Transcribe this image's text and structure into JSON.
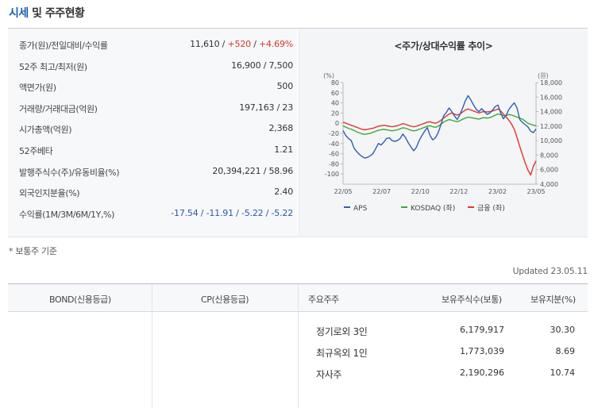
{
  "section": {
    "title_accent": "시세",
    "title_rest": " 및 주주현황"
  },
  "market_info": [
    {
      "label": "종가(원)/전일대비/수익률",
      "parts": [
        {
          "text": "11,610",
          "tone": "normal"
        },
        {
          "text": " / ",
          "tone": "sep"
        },
        {
          "text": "+520",
          "tone": "up"
        },
        {
          "text": " / ",
          "tone": "sep"
        },
        {
          "text": "+4.69%",
          "tone": "up"
        }
      ]
    },
    {
      "label": "52주 최고/최저(원)",
      "parts": [
        {
          "text": "16,900 / 7,500",
          "tone": "normal"
        }
      ]
    },
    {
      "label": "액면가(원)",
      "parts": [
        {
          "text": "500",
          "tone": "normal"
        }
      ]
    },
    {
      "label": "거래량/거래대금(억원)",
      "parts": [
        {
          "text": "197,163 / 23",
          "tone": "normal"
        }
      ]
    },
    {
      "label": "시가총액(억원)",
      "parts": [
        {
          "text": "2,368",
          "tone": "normal"
        }
      ]
    },
    {
      "label": "52주베타",
      "parts": [
        {
          "text": "1.21",
          "tone": "normal"
        }
      ]
    },
    {
      "label": "발행주식수(주)/유동비율(%)",
      "parts": [
        {
          "text": "20,394,221 / 58.96",
          "tone": "normal"
        }
      ]
    },
    {
      "label": "외국인지분율(%)",
      "parts": [
        {
          "text": "2.40",
          "tone": "normal"
        }
      ]
    },
    {
      "label": "수익률(1M/3M/6M/1Y,%)",
      "parts": [
        {
          "text": "-17.54 / -11.91 / -5.22 / -5.22",
          "tone": "down"
        }
      ]
    }
  ],
  "chart_data": {
    "type": "line",
    "title": "<주가/상대수익률 추이>",
    "left_axis": {
      "unit": "(%)",
      "ticks": [
        80,
        60,
        40,
        20,
        0,
        -20,
        -40,
        -60,
        -80,
        -100
      ],
      "range": [
        -120,
        80
      ]
    },
    "right_axis": {
      "unit": "(원)",
      "ticks": [
        "18,000",
        "16,000",
        "14,000",
        "12,000",
        "10,000",
        "8,000",
        "6,000",
        "4,000"
      ],
      "range": [
        4000,
        18000
      ]
    },
    "x_labels": [
      "22/05",
      "22/07",
      "22/10",
      "22/12",
      "23/02",
      "23/05"
    ],
    "series": [
      {
        "name": "APS",
        "color": "#2f5fb3",
        "axis": "right",
        "values": [
          11400,
          10700,
          10300,
          10000,
          9000,
          8500,
          8100,
          7800,
          7600,
          7700,
          7900,
          8200,
          8900,
          9600,
          9400,
          9800,
          10300,
          10400,
          10000,
          9900,
          10000,
          10300,
          10900,
          10400,
          9700,
          9100,
          8600,
          9100,
          10000,
          10700,
          11300,
          11800,
          10700,
          10100,
          10400,
          11100,
          12200,
          13400,
          13900,
          14500,
          14000,
          13400,
          12900,
          13600,
          14500,
          15500,
          16200,
          15600,
          14900,
          14300,
          14000,
          14400,
          14000,
          13600,
          13800,
          14200,
          14700,
          14900,
          13800,
          13000,
          13500,
          14300,
          14800,
          15200,
          14500,
          12900,
          12500,
          12200,
          11900,
          11300,
          11100,
          11610
        ]
      },
      {
        "name": "KOSDAQ (좌)",
        "color": "#3aaa35",
        "axis": "left",
        "values": [
          -5,
          -8,
          -10,
          -12,
          -14,
          -17,
          -19,
          -21,
          -22,
          -21,
          -20,
          -18,
          -16,
          -14,
          -13,
          -12,
          -13,
          -14,
          -15,
          -14,
          -13,
          -11,
          -9,
          -10,
          -12,
          -14,
          -15,
          -14,
          -12,
          -10,
          -8,
          -6,
          -5,
          -7,
          -8,
          -6,
          -2,
          2,
          5,
          7,
          6,
          4,
          3,
          5,
          8,
          10,
          12,
          11,
          10,
          9,
          8,
          10,
          11,
          10,
          11,
          13,
          16,
          18,
          17,
          15,
          15,
          17,
          16,
          14,
          12,
          10,
          8,
          4,
          0,
          -2,
          -4,
          -5
        ]
      },
      {
        "name": "금융 (좌)",
        "color": "#e3352d",
        "axis": "left",
        "values": [
          2,
          0,
          -2,
          -4,
          -6,
          -8,
          -10,
          -12,
          -13,
          -12,
          -11,
          -10,
          -8,
          -6,
          -5,
          -4,
          -5,
          -6,
          -7,
          -6,
          -5,
          -3,
          -1,
          -2,
          -4,
          -6,
          -7,
          -6,
          -4,
          -2,
          0,
          2,
          3,
          1,
          0,
          2,
          6,
          10,
          14,
          18,
          20,
          18,
          16,
          18,
          22,
          26,
          28,
          26,
          24,
          22,
          20,
          22,
          23,
          22,
          23,
          24,
          26,
          28,
          24,
          18,
          12,
          6,
          -2,
          -12,
          -28,
          -46,
          -62,
          -78,
          -92,
          -102,
          -85,
          -74
        ]
      }
    ],
    "legend_position": "bottom",
    "grid": false
  },
  "footnote": "* 보통주 기준",
  "updated": "Updated 23.05.11",
  "holders_table": {
    "headers": {
      "bond": "BOND(신용등급)",
      "cp": "CP(신용등급)",
      "holder": "주요주주",
      "shares": "보유주식수(보통)",
      "pct": "보유지분(%)"
    },
    "rows": [
      {
        "name": "정기로외 3인",
        "shares": "6,179,917",
        "pct": "30.30"
      },
      {
        "name": "최규옥외 1인",
        "shares": "1,773,039",
        "pct": "8.69"
      },
      {
        "name": "자사주",
        "shares": "2,190,296",
        "pct": "10.74"
      }
    ]
  }
}
